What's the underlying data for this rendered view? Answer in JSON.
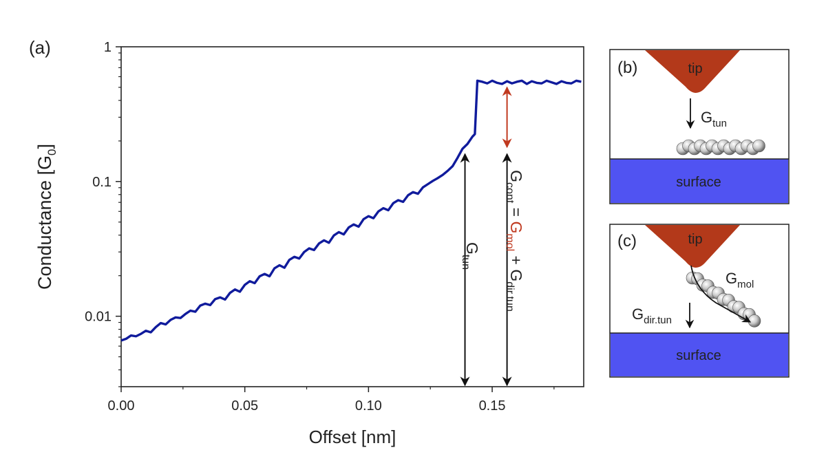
{
  "chart_data": {
    "type": "line",
    "panel_label": "(a)",
    "xlabel": "Offset [nm]",
    "ylabel_main": "Conductance [G",
    "ylabel_sub": "0",
    "ylabel_close": "]",
    "xlim": [
      0,
      0.187
    ],
    "ylim": [
      0.003,
      1
    ],
    "yscale": "log",
    "x_ticks": [
      0.0,
      0.05,
      0.1,
      0.15
    ],
    "x_tick_labels": [
      "0.00",
      "0.05",
      "0.10",
      "0.15"
    ],
    "y_ticks": [
      0.01,
      0.1,
      1
    ],
    "y_tick_labels": [
      "0.01",
      "0.1",
      "1"
    ],
    "line_color": "#101b9c",
    "series": [
      {
        "x": [
          0.0,
          0.002,
          0.004,
          0.006,
          0.008,
          0.01,
          0.012,
          0.014,
          0.016,
          0.018,
          0.02,
          0.022,
          0.024,
          0.026,
          0.028,
          0.03,
          0.032,
          0.034,
          0.036,
          0.038,
          0.04,
          0.042,
          0.044,
          0.046,
          0.048,
          0.05,
          0.052,
          0.054,
          0.056,
          0.058,
          0.06,
          0.062,
          0.064,
          0.066,
          0.068,
          0.07,
          0.072,
          0.074,
          0.076,
          0.078,
          0.08,
          0.082,
          0.084,
          0.086,
          0.088,
          0.09,
          0.092,
          0.094,
          0.096,
          0.098,
          0.1,
          0.102,
          0.104,
          0.106,
          0.108,
          0.11,
          0.112,
          0.114,
          0.116,
          0.118,
          0.12,
          0.122,
          0.124,
          0.126,
          0.128,
          0.13,
          0.132,
          0.134,
          0.136,
          0.138,
          0.14,
          0.142,
          0.143,
          0.144,
          0.146,
          0.148,
          0.15,
          0.152,
          0.154,
          0.156,
          0.158,
          0.16,
          0.162,
          0.164,
          0.166,
          0.168,
          0.17,
          0.172,
          0.174,
          0.176,
          0.178,
          0.18,
          0.182,
          0.184,
          0.186
        ],
        "y": [
          0.0066,
          0.0068,
          0.0072,
          0.0071,
          0.0074,
          0.0078,
          0.0076,
          0.0083,
          0.0089,
          0.0087,
          0.0094,
          0.0098,
          0.0097,
          0.0104,
          0.011,
          0.0108,
          0.012,
          0.0124,
          0.0121,
          0.0134,
          0.0138,
          0.0133,
          0.0149,
          0.0158,
          0.0152,
          0.0171,
          0.0182,
          0.0176,
          0.0198,
          0.0206,
          0.0198,
          0.0227,
          0.0239,
          0.0229,
          0.0262,
          0.0276,
          0.0268,
          0.03,
          0.0319,
          0.031,
          0.0347,
          0.0366,
          0.0351,
          0.0398,
          0.0421,
          0.0405,
          0.0456,
          0.048,
          0.0462,
          0.0525,
          0.0553,
          0.0534,
          0.06,
          0.0634,
          0.0612,
          0.069,
          0.0727,
          0.0706,
          0.0791,
          0.0834,
          0.0811,
          0.0905,
          0.0956,
          0.101,
          0.106,
          0.112,
          0.12,
          0.13,
          0.15,
          0.175,
          0.19,
          0.215,
          0.225,
          0.56,
          0.55,
          0.535,
          0.56,
          0.54,
          0.53,
          0.555,
          0.535,
          0.55,
          0.56,
          0.53,
          0.555,
          0.54,
          0.535,
          0.56,
          0.545,
          0.53,
          0.555,
          0.54,
          0.535,
          0.56,
          0.55
        ]
      }
    ],
    "annotations": {
      "gtun_arrow_x": 0.139,
      "gtun_arrow_range": [
        0.003,
        0.16
      ],
      "gcont_arrow_x": 0.156,
      "gcont_black_range": [
        0.003,
        0.16
      ],
      "gcont_red_range": [
        0.18,
        0.5
      ],
      "red_color": "#c0391f",
      "gtun_main": "G",
      "gtun_sub": "tun",
      "gcont_main": "G",
      "gcont_sub": "cont",
      "equals": " = ",
      "gmol_main": "G",
      "gmol_sub": "mol",
      "plus": " + G",
      "gdir_sub": "dir.tun"
    }
  },
  "inset_b": {
    "label": "(b)",
    "tip_label": "tip",
    "surface_label": "surface",
    "arrow_main": "G",
    "arrow_sub": "tun"
  },
  "inset_c": {
    "label": "(c)",
    "tip_label": "tip",
    "surface_label": "surface",
    "gmol_main": "G",
    "gmol_sub": "mol",
    "gdir_main": "G",
    "gdir_sub": "dir.tun"
  },
  "colors": {
    "tip": "#b3391a",
    "surface": "#5053f2",
    "axis": "#222222"
  }
}
